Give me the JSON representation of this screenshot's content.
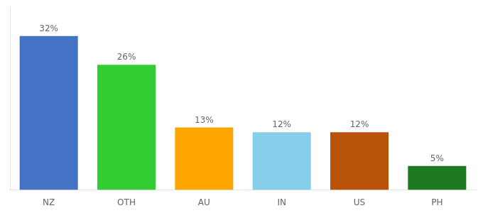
{
  "chart_data": {
    "type": "bar",
    "categories": [
      "NZ",
      "OTH",
      "AU",
      "IN",
      "US",
      "PH"
    ],
    "values": [
      32,
      26,
      13,
      12,
      12,
      5
    ],
    "value_labels": [
      "32%",
      "26%",
      "13%",
      "12%",
      "12%",
      "5%"
    ],
    "colors": [
      "#4472C4",
      "#33CC33",
      "#FFA500",
      "#87CEEB",
      "#B8520A",
      "#1E7A1E"
    ],
    "ylim": [
      0,
      38
    ],
    "grid": false,
    "data_labels": true,
    "tick_labels": "x"
  }
}
